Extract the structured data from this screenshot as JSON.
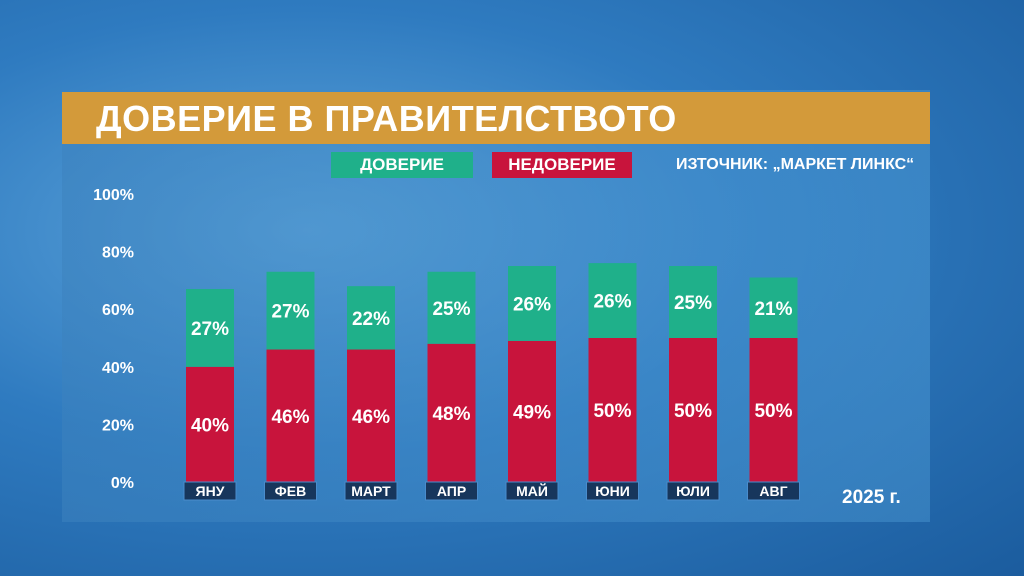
{
  "header": {
    "title": "ДОВЕРИЕ В ПРАВИТЕЛСТВОТО"
  },
  "legend": {
    "trust": "ДОВЕРИЕ",
    "distrust": "НЕДОВЕРИЕ"
  },
  "source": "ИЗТОЧНИК: „МАРКЕТ ЛИНКС“",
  "year_label": "2025 г.",
  "colors": {
    "trust": "#1fb08a",
    "distrust": "#c8143c",
    "title_bar": "#d39a3a",
    "category_tab": "#17365c"
  },
  "chart_data": {
    "type": "bar",
    "stacked": true,
    "categories": [
      "ЯНУ",
      "ФЕВ",
      "МАРТ",
      "АПР",
      "МАЙ",
      "ЮНИ",
      "ЮЛИ",
      "АВГ"
    ],
    "series": [
      {
        "name": "НЕДОВЕРИЕ",
        "values": [
          40,
          46,
          46,
          48,
          49,
          50,
          50,
          50
        ],
        "labels": [
          "40%",
          "46%",
          "46%",
          "48%",
          "49%",
          "50%",
          "50%",
          "50%"
        ]
      },
      {
        "name": "ДОВЕРИЕ",
        "values": [
          27,
          27,
          22,
          25,
          26,
          26,
          25,
          21
        ],
        "labels": [
          "27%",
          "27%",
          "22%",
          "25%",
          "26%",
          "26%",
          "25%",
          "21%"
        ]
      }
    ],
    "ylim": [
      0,
      100
    ],
    "yticks": [
      "0%",
      "20%",
      "40%",
      "60%",
      "80%",
      "100%"
    ],
    "ytick_values": [
      0,
      20,
      40,
      60,
      80,
      100
    ],
    "grid": false,
    "legend_position": "top"
  }
}
